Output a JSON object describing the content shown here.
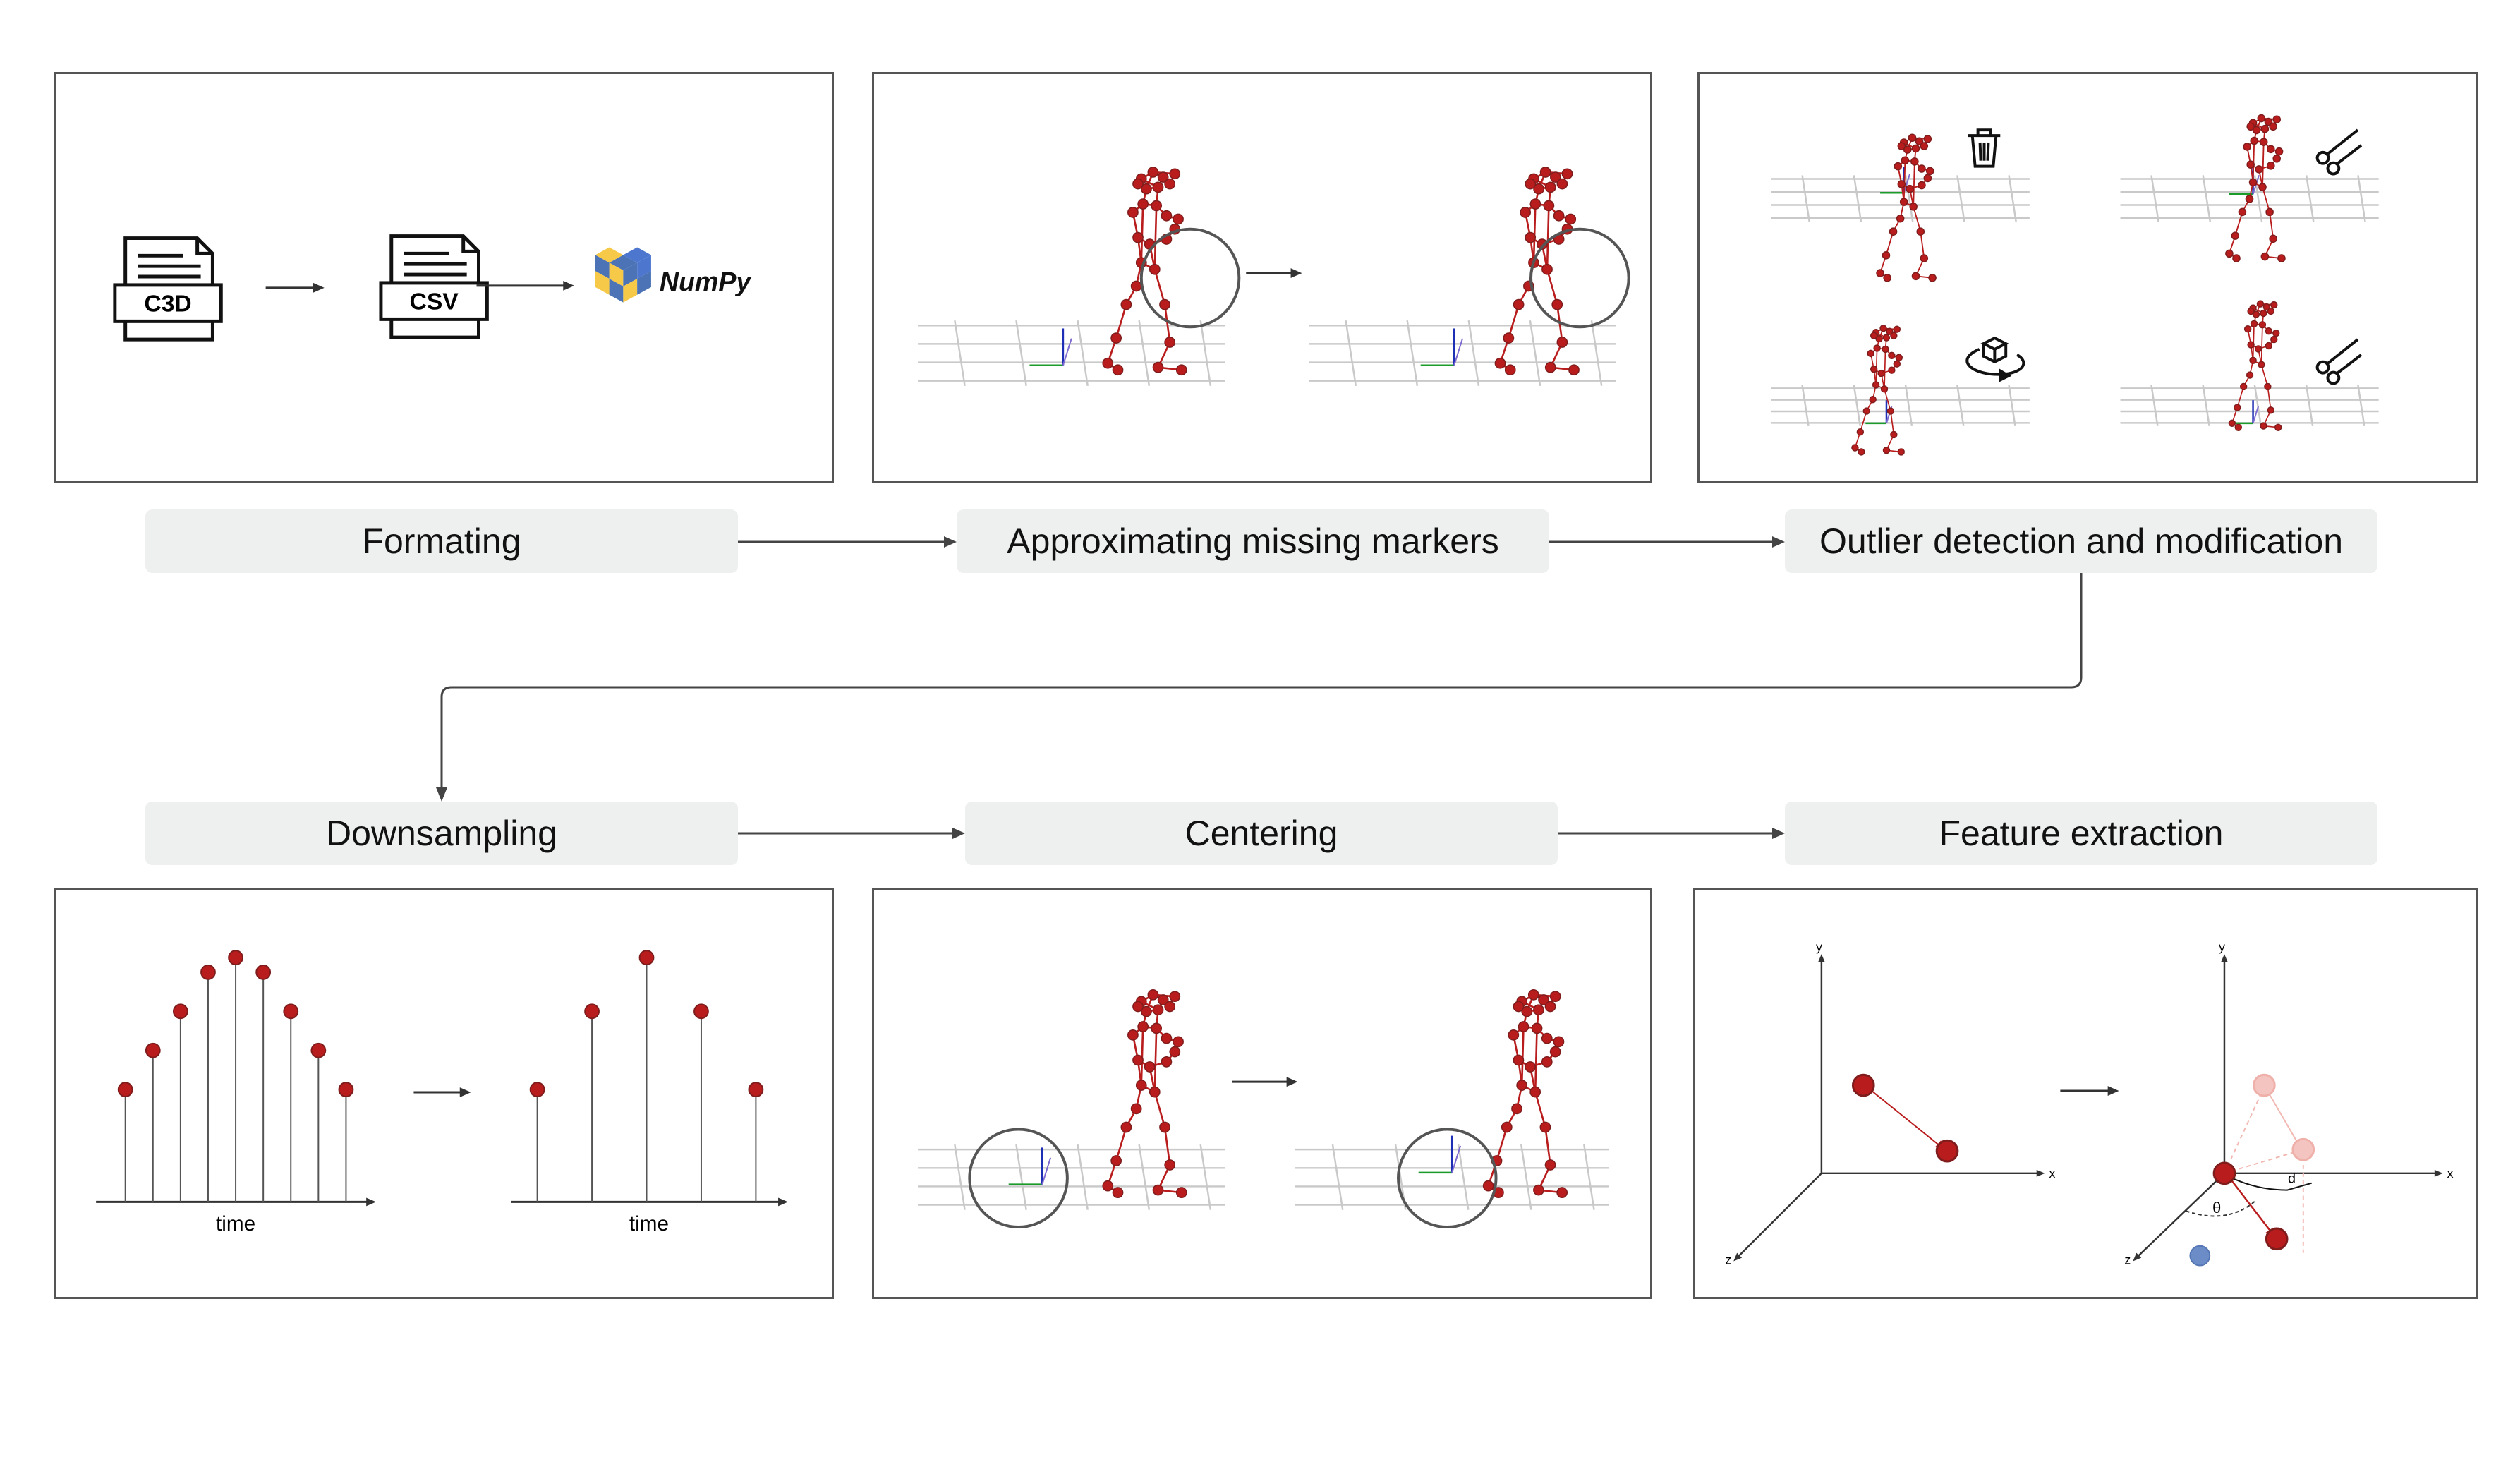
{
  "steps": {
    "formatting": "Formating",
    "approx": "Approximating missing markers",
    "outlier": "Outlier detection and modification",
    "downsampling": "Downsampling",
    "centering": "Centering",
    "feature": "Feature extraction"
  },
  "formatting_panel": {
    "file1": "C3D",
    "file2": "CSV",
    "library": "NumPy"
  },
  "downsampling_panel": {
    "xlabel1": "time",
    "xlabel2": "time",
    "original_values": [
      0.46,
      0.62,
      0.78,
      0.94,
      1.0,
      0.94,
      0.78,
      0.62,
      0.46
    ],
    "downsampled_values": [
      0.46,
      0.78,
      1.0,
      0.78,
      0.46
    ]
  },
  "feature_panel": {
    "axis_x": "x",
    "axis_y": "y",
    "axis_z": "z",
    "axis_x2": "x",
    "axis_y2": "y",
    "axis_z2": "z",
    "theta": "θ",
    "d": "d"
  },
  "colors": {
    "marker": "#b91c1c",
    "marker_dark": "#7f1d1d",
    "label_bg": "#eeefef",
    "grid": "#c9c9c9",
    "faded_marker": "#f4c4c0",
    "blue_marker": "#6b8cc7",
    "numpy_blue": "#4b73b5",
    "numpy_yellow": "#f7c948"
  }
}
